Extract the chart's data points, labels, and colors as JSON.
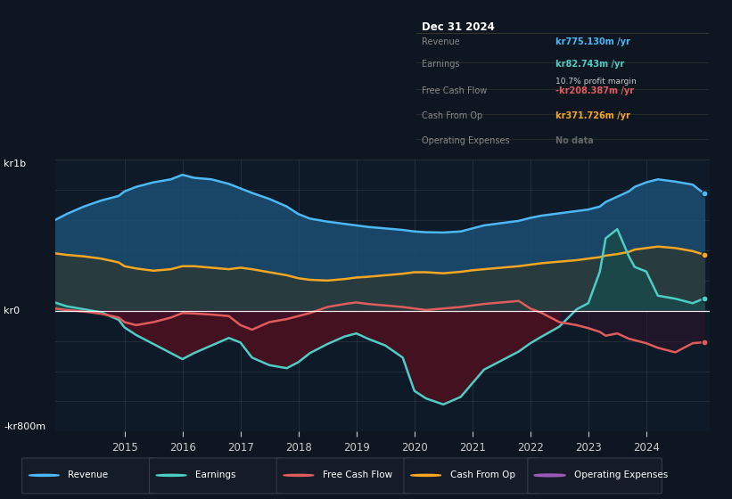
{
  "bg_color": "#0e1621",
  "chart_bg": "#0e1a27",
  "title": "Dec 31 2024",
  "table_data": {
    "Revenue": {
      "value": "kr775.130m /yr",
      "color": "#4cb8f5"
    },
    "Earnings": {
      "value": "kr82.743m /yr",
      "color": "#4ecdc4"
    },
    "profit_margin": "10.7% profit margin",
    "Free Cash Flow": {
      "value": "-kr208.387m /yr",
      "color": "#e05c5c"
    },
    "Cash From Op": {
      "value": "kr371.726m /yr",
      "color": "#f5a623"
    },
    "Operating Expenses": {
      "value": "No data",
      "color": "#666666"
    }
  },
  "ylim": [
    -800,
    1000
  ],
  "ylabel_top": "kr1b",
  "ylabel_bottom": "-kr800m",
  "ylabel_zero": "kr0",
  "xlim_start": 2013.8,
  "xlim_end": 2025.1,
  "xticks": [
    2015,
    2016,
    2017,
    2018,
    2019,
    2020,
    2021,
    2022,
    2023,
    2024
  ],
  "legend": [
    {
      "label": "Revenue",
      "color": "#4cb8f5",
      "filled": true
    },
    {
      "label": "Earnings",
      "color": "#4ecdc4",
      "filled": true
    },
    {
      "label": "Free Cash Flow",
      "color": "#e05c5c",
      "filled": true
    },
    {
      "label": "Cash From Op",
      "color": "#f5a623",
      "filled": true
    },
    {
      "label": "Operating Expenses",
      "color": "#9b59b6",
      "filled": false
    }
  ],
  "years": [
    2013.8,
    2014.0,
    2014.3,
    2014.6,
    2014.9,
    2015.0,
    2015.2,
    2015.5,
    2015.8,
    2016.0,
    2016.2,
    2016.5,
    2016.8,
    2017.0,
    2017.2,
    2017.5,
    2017.8,
    2018.0,
    2018.2,
    2018.5,
    2018.8,
    2019.0,
    2019.2,
    2019.5,
    2019.8,
    2020.0,
    2020.2,
    2020.5,
    2020.8,
    2021.0,
    2021.2,
    2021.5,
    2021.8,
    2022.0,
    2022.2,
    2022.5,
    2022.8,
    2023.0,
    2023.2,
    2023.3,
    2023.5,
    2023.7,
    2023.8,
    2024.0,
    2024.2,
    2024.5,
    2024.8,
    2025.0
  ],
  "revenue": [
    600,
    640,
    690,
    730,
    760,
    790,
    820,
    850,
    870,
    900,
    880,
    870,
    840,
    810,
    780,
    740,
    690,
    640,
    610,
    590,
    575,
    565,
    555,
    545,
    535,
    525,
    520,
    518,
    525,
    545,
    565,
    580,
    595,
    615,
    630,
    645,
    660,
    670,
    690,
    720,
    755,
    790,
    820,
    850,
    870,
    855,
    835,
    775
  ],
  "earnings": [
    55,
    30,
    10,
    -10,
    -60,
    -110,
    -160,
    -220,
    -280,
    -320,
    -280,
    -230,
    -180,
    -210,
    -310,
    -360,
    -380,
    -340,
    -280,
    -220,
    -170,
    -150,
    -185,
    -230,
    -310,
    -530,
    -580,
    -620,
    -570,
    -480,
    -390,
    -330,
    -270,
    -215,
    -170,
    -105,
    10,
    50,
    260,
    480,
    540,
    360,
    290,
    260,
    100,
    80,
    50,
    82
  ],
  "free_cash_flow": [
    15,
    5,
    -5,
    -20,
    -45,
    -75,
    -95,
    -75,
    -45,
    -15,
    -18,
    -25,
    -35,
    -95,
    -125,
    -75,
    -55,
    -35,
    -15,
    25,
    45,
    55,
    45,
    35,
    25,
    15,
    5,
    15,
    25,
    35,
    45,
    55,
    65,
    15,
    -15,
    -75,
    -95,
    -115,
    -140,
    -165,
    -150,
    -185,
    -195,
    -215,
    -245,
    -275,
    -215,
    -208
  ],
  "cash_from_op": [
    380,
    370,
    360,
    345,
    320,
    295,
    280,
    265,
    275,
    295,
    295,
    285,
    275,
    285,
    275,
    255,
    235,
    215,
    205,
    200,
    210,
    220,
    225,
    235,
    245,
    255,
    255,
    248,
    258,
    268,
    275,
    285,
    295,
    305,
    315,
    325,
    335,
    345,
    355,
    365,
    375,
    390,
    405,
    415,
    425,
    415,
    395,
    371
  ]
}
